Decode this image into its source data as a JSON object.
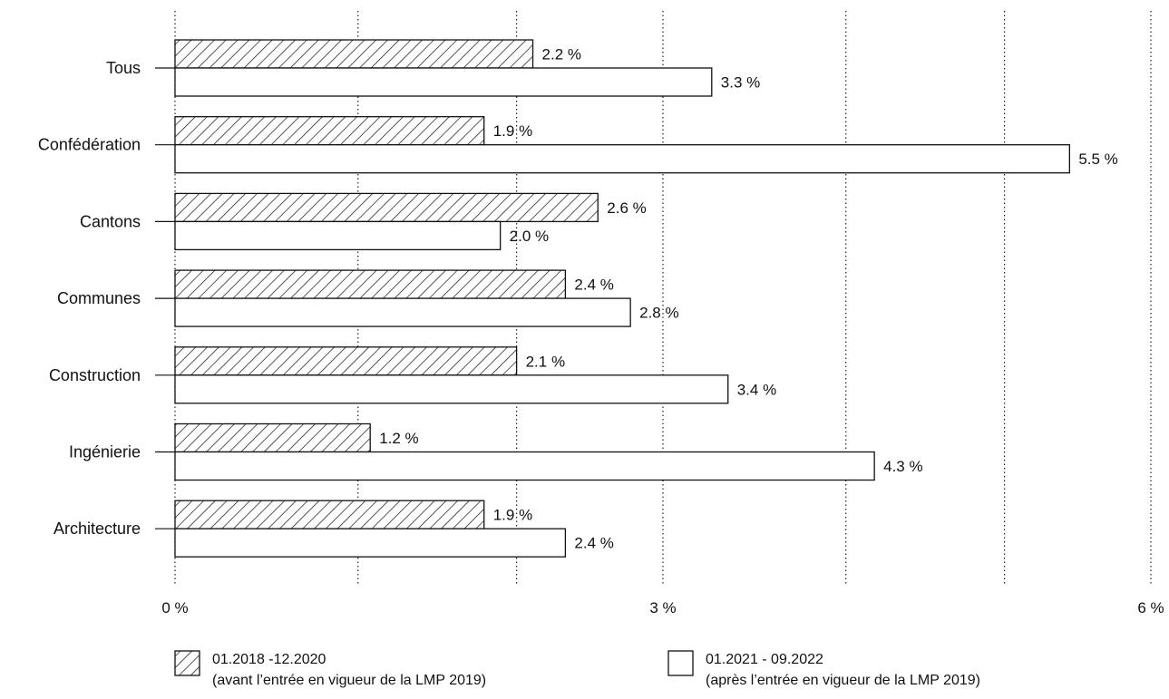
{
  "chart_data": {
    "type": "bar",
    "orientation": "horizontal",
    "categories": [
      "Tous",
      "Confédération",
      "Cantons",
      "Communes",
      "Construction",
      "Ingénierie",
      "Architecture"
    ],
    "series": [
      {
        "name": "01.2018 -12.2020",
        "note": "(avant l’entrée en vigueur de la LMP 2019)",
        "pattern": "hatched",
        "values": [
          2.2,
          1.9,
          2.6,
          2.4,
          2.1,
          1.2,
          1.9
        ],
        "labels": [
          "2.2 %",
          "1.9 %",
          "2.6 %",
          "2.4 %",
          "2.1 %",
          "1.2 %",
          "1.9 %"
        ]
      },
      {
        "name": "01.2021 - 09.2022",
        "note": "(après l’entrée en vigueur de la LMP 2019)",
        "pattern": "empty",
        "values": [
          3.3,
          5.5,
          2.0,
          2.8,
          3.4,
          4.3,
          2.4
        ],
        "labels": [
          "3.3 %",
          "5.5 %",
          "2.0 %",
          "2.8 %",
          "3.4 %",
          "4.3 %",
          "2.4 %"
        ]
      }
    ],
    "xlim": [
      0,
      6
    ],
    "xticks": [
      0,
      3,
      6
    ],
    "xtick_labels": [
      "0 %",
      "3 %",
      "6 %"
    ],
    "minor_gridlines": [
      1.125,
      2.1,
      4.125,
      5.1
    ],
    "grid": "dotted vertical",
    "legend_position": "bottom",
    "title": "",
    "xlabel": "",
    "ylabel": ""
  },
  "colors": {
    "bar_stroke": "#111111",
    "bar_fill": "#ffffff",
    "grid": "#222222"
  }
}
